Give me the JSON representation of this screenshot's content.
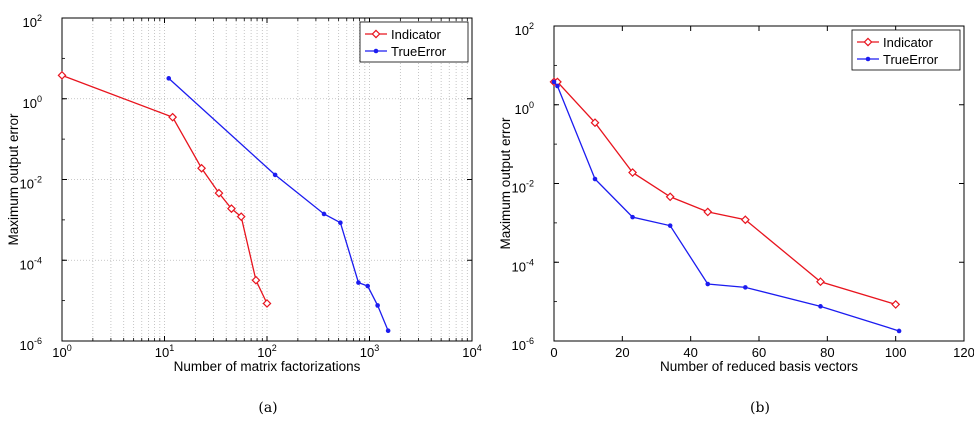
{
  "chart_data": [
    {
      "type": "line",
      "panel": "(a)",
      "xlabel": "Number of matrix factorizations",
      "ylabel": "Maximum output error",
      "xscale": "log",
      "yscale": "log",
      "xlim": [
        1,
        10000
      ],
      "ylim": [
        1e-06,
        100
      ],
      "xticks": [
        1,
        10,
        100,
        1000,
        10000
      ],
      "xtick_labels": [
        [
          "10",
          "0"
        ],
        [
          "10",
          "1"
        ],
        [
          "10",
          "2"
        ],
        [
          "10",
          "3"
        ],
        [
          "10",
          "4"
        ]
      ],
      "yticks": [
        1e-06,
        0.0001,
        0.01,
        1,
        100
      ],
      "ytick_labels": [
        [
          "10",
          "-6"
        ],
        [
          "10",
          "-4"
        ],
        [
          "10",
          "-2"
        ],
        [
          "10",
          "0"
        ],
        [
          "10",
          "2"
        ]
      ],
      "grid": "on",
      "legend_position": "top-right",
      "series": [
        {
          "name": "Indicator",
          "color": "#e8141e",
          "marker": "diamond",
          "x": [
            1,
            12,
            23,
            34,
            45,
            56,
            78,
            100
          ],
          "y": [
            3.8,
            0.35,
            0.019,
            0.0046,
            0.0019,
            0.0012,
            3.2e-05,
            8.5e-06
          ]
        },
        {
          "name": "TrueError",
          "color": "#1c1cf0",
          "marker": "dot",
          "x": [
            11,
            120,
            360,
            520,
            780,
            960,
            1200,
            1520
          ],
          "y": [
            3.2,
            0.013,
            0.0014,
            0.00085,
            2.8e-05,
            2.3e-05,
            7.6e-06,
            1.8e-06
          ]
        }
      ]
    },
    {
      "type": "line",
      "panel": "(b)",
      "xlabel": "Number of reduced basis vectors",
      "ylabel": "Maximum output error",
      "xscale": "linear",
      "yscale": "log",
      "xlim": [
        0,
        120
      ],
      "ylim": [
        1e-06,
        100
      ],
      "xticks": [
        0,
        20,
        40,
        60,
        80,
        100,
        120
      ],
      "xtick_labels": [
        [
          "0",
          ""
        ],
        [
          "20",
          ""
        ],
        [
          "40",
          ""
        ],
        [
          "60",
          ""
        ],
        [
          "80",
          ""
        ],
        [
          "100",
          ""
        ],
        [
          "120",
          ""
        ]
      ],
      "yticks": [
        1e-06,
        0.0001,
        0.01,
        1,
        100
      ],
      "ytick_labels": [
        [
          "10",
          "-6"
        ],
        [
          "10",
          "-4"
        ],
        [
          "10",
          "-2"
        ],
        [
          "10",
          "0"
        ],
        [
          "10",
          "2"
        ]
      ],
      "grid": "off",
      "legend_position": "top-right",
      "series": [
        {
          "name": "Indicator",
          "color": "#e8141e",
          "marker": "diamond",
          "x": [
            0,
            1,
            12,
            23,
            34,
            45,
            56,
            78,
            100
          ],
          "y": [
            3.8,
            3.8,
            0.35,
            0.019,
            0.0046,
            0.0019,
            0.0012,
            3.2e-05,
            8.5e-06
          ]
        },
        {
          "name": "TrueError",
          "color": "#1c1cf0",
          "marker": "dot",
          "x": [
            0,
            1,
            12,
            23,
            34,
            45,
            56,
            78,
            101
          ],
          "y": [
            3.8,
            3.0,
            0.013,
            0.0014,
            0.00085,
            2.8e-05,
            2.3e-05,
            7.6e-06,
            1.8e-06
          ]
        }
      ]
    }
  ],
  "captions": [
    "(a)",
    "(b)"
  ]
}
